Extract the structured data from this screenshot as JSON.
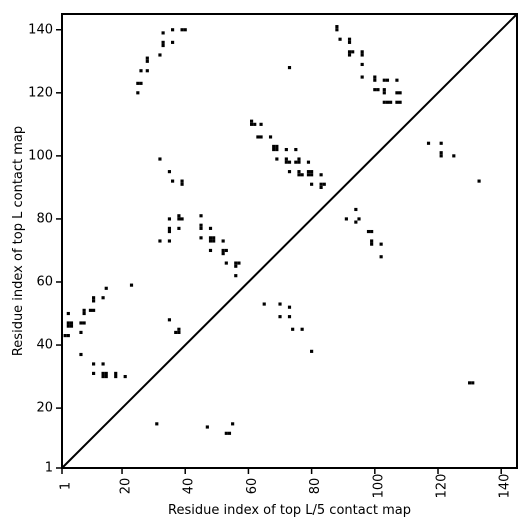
{
  "chart_data": {
    "type": "scatter",
    "title": "",
    "xlabel": "Residue index of top L/5 contact map",
    "ylabel": "Residue index of top L contact map",
    "xlim": [
      1,
      145
    ],
    "ylim": [
      1,
      145
    ],
    "x_ticks": [
      1,
      20,
      40,
      60,
      80,
      100,
      120,
      140
    ],
    "y_ticks": [
      1,
      20,
      40,
      60,
      80,
      100,
      120,
      140
    ],
    "x_tick_labels": [
      "1",
      "20",
      "40",
      "60",
      "80",
      "100",
      "120",
      "140"
    ],
    "y_tick_labels": [
      "1",
      "20",
      "40",
      "60",
      "80",
      "100",
      "120",
      "140"
    ],
    "grid": false,
    "legend": "none",
    "marker": "square",
    "colors": {
      "points": "#000000",
      "axes": "#000000",
      "diagonal": "#000000",
      "background": "#ffffff"
    },
    "diagonal_line": {
      "from": [
        1,
        1
      ],
      "to": [
        145,
        145
      ]
    },
    "upper_left_points": [
      [
        2,
        43
      ],
      [
        3,
        43
      ],
      [
        3,
        46
      ],
      [
        4,
        46
      ],
      [
        3,
        47
      ],
      [
        4,
        47
      ],
      [
        3,
        50
      ],
      [
        7,
        44
      ],
      [
        7,
        47
      ],
      [
        8,
        47
      ],
      [
        8,
        50
      ],
      [
        8,
        51
      ],
      [
        10,
        51
      ],
      [
        11,
        51
      ],
      [
        11,
        54
      ],
      [
        11,
        55
      ],
      [
        14,
        55
      ],
      [
        15,
        58
      ],
      [
        7,
        37
      ],
      [
        11,
        34
      ],
      [
        11,
        31
      ],
      [
        14,
        34
      ],
      [
        14,
        31
      ],
      [
        15,
        31
      ],
      [
        14,
        30
      ],
      [
        15,
        30
      ],
      [
        18,
        31
      ],
      [
        18,
        30
      ],
      [
        21,
        30
      ],
      [
        23,
        59
      ],
      [
        25,
        120
      ],
      [
        25,
        123
      ],
      [
        26,
        123
      ],
      [
        26,
        127
      ],
      [
        28,
        127
      ],
      [
        28,
        130
      ],
      [
        28,
        131
      ],
      [
        32,
        132
      ],
      [
        33,
        135
      ],
      [
        33,
        136
      ],
      [
        33,
        139
      ],
      [
        36,
        136
      ],
      [
        36,
        140
      ],
      [
        39,
        140
      ],
      [
        40,
        140
      ],
      [
        32,
        99
      ],
      [
        35,
        95
      ],
      [
        36,
        92
      ],
      [
        39,
        92
      ],
      [
        39,
        91
      ],
      [
        35,
        80
      ],
      [
        38,
        80
      ],
      [
        38,
        81
      ],
      [
        39,
        80
      ],
      [
        35,
        77
      ],
      [
        35,
        76
      ],
      [
        38,
        77
      ],
      [
        32,
        73
      ],
      [
        35,
        73
      ],
      [
        35,
        48
      ],
      [
        37,
        44
      ],
      [
        38,
        44
      ],
      [
        38,
        45
      ],
      [
        31,
        15
      ],
      [
        45,
        81
      ],
      [
        45,
        78
      ],
      [
        45,
        77
      ],
      [
        48,
        77
      ],
      [
        48,
        74
      ],
      [
        49,
        74
      ],
      [
        48,
        73
      ],
      [
        49,
        73
      ],
      [
        45,
        74
      ],
      [
        48,
        70
      ],
      [
        52,
        73
      ],
      [
        52,
        70
      ],
      [
        53,
        70
      ],
      [
        52,
        69
      ],
      [
        53,
        66
      ],
      [
        56,
        66
      ],
      [
        57,
        66
      ],
      [
        56,
        65
      ],
      [
        56,
        62
      ],
      [
        47,
        14
      ],
      [
        53,
        12
      ],
      [
        54,
        12
      ],
      [
        55,
        15
      ],
      [
        61,
        111
      ],
      [
        61,
        110
      ],
      [
        62,
        110
      ],
      [
        63,
        106
      ],
      [
        64,
        106
      ],
      [
        64,
        110
      ],
      [
        67,
        106
      ],
      [
        68,
        103
      ],
      [
        69,
        103
      ],
      [
        68,
        102
      ],
      [
        69,
        102
      ],
      [
        72,
        102
      ],
      [
        69,
        99
      ],
      [
        72,
        99
      ],
      [
        72,
        98
      ],
      [
        73,
        98
      ],
      [
        75,
        98
      ],
      [
        76,
        98
      ],
      [
        76,
        99
      ],
      [
        75,
        102
      ],
      [
        73,
        95
      ],
      [
        76,
        95
      ],
      [
        76,
        94
      ],
      [
        77,
        94
      ],
      [
        79,
        95
      ],
      [
        80,
        95
      ],
      [
        79,
        94
      ],
      [
        80,
        94
      ],
      [
        79,
        98
      ],
      [
        80,
        91
      ],
      [
        83,
        94
      ],
      [
        83,
        91
      ],
      [
        84,
        91
      ],
      [
        83,
        90
      ],
      [
        73,
        128
      ],
      [
        65,
        53
      ],
      [
        70,
        53
      ],
      [
        70,
        49
      ],
      [
        73,
        52
      ],
      [
        73,
        49
      ],
      [
        74,
        45
      ],
      [
        77,
        45
      ],
      [
        80,
        38
      ],
      [
        88,
        141
      ],
      [
        88,
        140
      ],
      [
        89,
        137
      ],
      [
        92,
        137
      ],
      [
        92,
        136
      ],
      [
        92,
        133
      ],
      [
        93,
        133
      ],
      [
        92,
        132
      ],
      [
        96,
        133
      ],
      [
        96,
        132
      ],
      [
        96,
        129
      ],
      [
        96,
        125
      ],
      [
        100,
        125
      ],
      [
        100,
        124
      ],
      [
        100,
        121
      ],
      [
        101,
        121
      ],
      [
        103,
        124
      ],
      [
        104,
        124
      ],
      [
        103,
        121
      ],
      [
        103,
        120
      ],
      [
        103,
        117
      ],
      [
        104,
        117
      ],
      [
        105,
        117
      ],
      [
        107,
        124
      ],
      [
        107,
        120
      ],
      [
        108,
        120
      ],
      [
        107,
        117
      ],
      [
        108,
        117
      ],
      [
        91,
        80
      ],
      [
        94,
        83
      ],
      [
        94,
        79
      ],
      [
        95,
        80
      ],
      [
        98,
        76
      ],
      [
        99,
        76
      ],
      [
        99,
        73
      ],
      [
        99,
        72
      ],
      [
        102,
        72
      ],
      [
        102,
        68
      ],
      [
        117,
        104
      ],
      [
        121,
        104
      ],
      [
        121,
        101
      ],
      [
        121,
        100
      ],
      [
        125,
        100
      ],
      [
        133,
        92
      ],
      [
        130,
        28
      ],
      [
        131,
        28
      ]
    ]
  }
}
